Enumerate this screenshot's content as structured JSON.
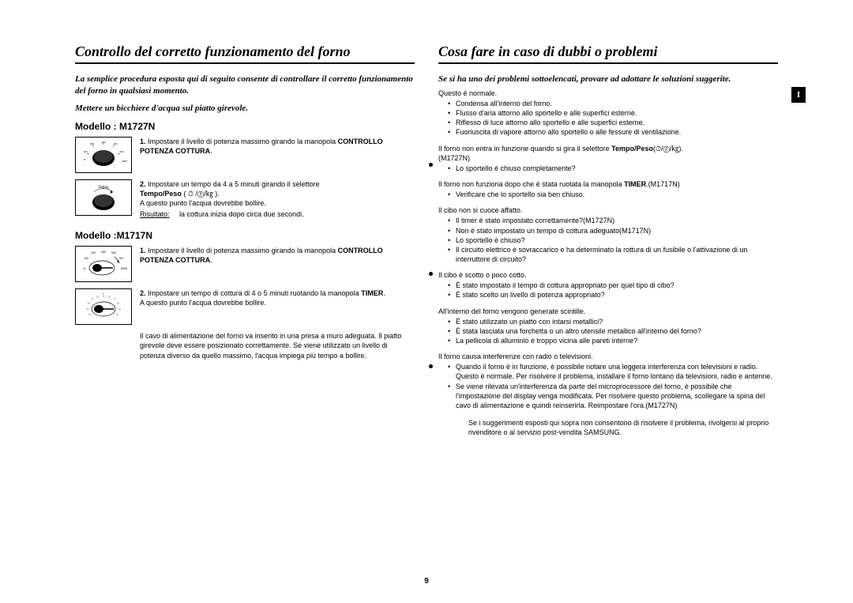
{
  "pageNumber": "9",
  "sideTab": "I",
  "left": {
    "title": "Controllo del corretto funzionamento del forno",
    "intro": "La semplice procedura esposta qui di seguito consente di controllare il corretto funzionamento del forno in qualsiasi momento.",
    "sub": "Mettere un bicchiere d'acqua sul piatto girevole.",
    "modelA": {
      "label": "Modello : M1727N",
      "step1": {
        "num": "1.",
        "text": "Impostare il livello di potenza massimo girando la manopola ",
        "bold": "CONTROLLO POTENZA COTTURA",
        "after": "."
      },
      "step2": {
        "num": "2.",
        "line1a": "Impostare un tempo da 4 a 5 minuti girando il selettore",
        "bold1": "Tempo/Peso",
        "symbols": " ( ⏱ /ⓖ/㎏ ).",
        "line2": "A questo punto l'acqua dovrebbe bollire.",
        "resLabel": "Risultato:",
        "resText": "la cottura inizia dopo circa due secondi."
      }
    },
    "modelB": {
      "label": "Modello :M1717N",
      "step1": {
        "num": "1.",
        "text": "Impostare il livello di potenza massimo girando la manopola ",
        "bold": "CONTROLLO POTENZA COTTURA",
        "after": "."
      },
      "step2": {
        "num": "2.",
        "line1": "Impostare un tempo di cottura di 4 o 5 minuti ruotando la manopola ",
        "bold": "TIMER",
        "after": ".",
        "line2": "A questo punto l'acqua dovrebbe bollire."
      }
    },
    "note": "Il cavo di alimentazione del forno va inserito in una presa a muro adeguata. Il piatto girevole deve essere posizionato correttamente. Se viene utilizzato un livello di potenza diverso da quello massimo, l'acqua impiega più tempo a bollire."
  },
  "right": {
    "title": "Cosa fare in caso di dubbi o problemi",
    "intro": "Se si ha uno dei problemi sottoelencati, provare ad adottare le soluzioni suggerite.",
    "sec0": {
      "head": "Questo è normale.",
      "items": [
        "Condensa all'interno del forno.",
        "Flusso d'aria attorno allo sportello e alle superfici esterne.",
        "Riflesso di luce attorno allo sportello e alle superfici esterne.",
        "Fuoriuscita di vapore attorno allo sportello o alle fessure di ventilazione."
      ]
    },
    "sec1": {
      "headA": "Il forno non entra in funzione quando si gira il selettore ",
      "headB": "Tempo/Peso",
      "headSym": "(⏱/ⓖ/㎏).",
      "headC": "(M1727N)",
      "items": [
        "Lo sportello è chiuso completamente?"
      ]
    },
    "sec2": {
      "head": "Il forno non funziona dopo che è stata ruotata la manopola ",
      "headB": "TIMER",
      "headC": ".(M1717N)",
      "items": [
        "Verificare che lo sportello sia ben chiuso."
      ]
    },
    "sec3": {
      "head": "Il cibo non si cuoce affatto.",
      "items": [
        "Il timer è stato impostato correttamente?(M1727N)",
        "Non è stato impostato un tempo di cottura adeguato(M1717N)",
        "Lo sportello è chiuso?",
        "Il circuito elettrico è sovraccarico e ha determinato la rottura di un fusibile o l'attivazione di un interruttore di circuito?"
      ]
    },
    "sec4": {
      "head": "Il cibo è scotto o poco cotto.",
      "items": [
        "È stato impostato il tempo di cottura appropriato per quel tipo di cibo?",
        "È stato scelto un livello di potenza appropriato?"
      ]
    },
    "sec5": {
      "head": "All'interno del forno vengono generate scintille.",
      "items": [
        "È stato utilizzato un piatto con intarsi metallici?",
        "È stata lasciata una forchetta o un altro utensile metallico all'interno del forno?",
        "La pellicola di alluminio è troppo vicina alle pareti interne?"
      ]
    },
    "sec6": {
      "head": "Il forno causa interferenze con radio o televisioni.",
      "items": [
        "Quando il forno è in funzione, è possibile notare una leggera interferenza con televisioni e radio. Questo è normale. Per risolvere il problema, installare il forno lontano da televisioni, radio e antenne.",
        "Se viene rilevata un'interferenza da parte del microprocessore del forno, è possibile che l'impostazione del display venga modificata. Per risolvere questo problema, scollegare la spina del cavo di alimentazione e quindi reinserirla. Reimpostare l'ora.(M1727N)"
      ]
    },
    "finalNote": "Se i suggerimenti esposti qui sopra non consentono di risolvere il problema, rivolgersi al proprio rivenditore o al servizio post-vendita SAMSUNG."
  },
  "dialLabels": {
    "a1": [
      "100",
      "180",
      "300",
      "450",
      "600",
      "800W"
    ],
    "a2top": "⏱/ⓖ/㎏",
    "b1": [
      "100",
      "200",
      "450",
      "600",
      "700",
      "800W",
      "❄"
    ],
    "b2nums": [
      "0",
      "1",
      "2",
      "3",
      "5",
      "7",
      "10",
      "12",
      "15",
      "20",
      "25",
      "30",
      "35"
    ]
  }
}
